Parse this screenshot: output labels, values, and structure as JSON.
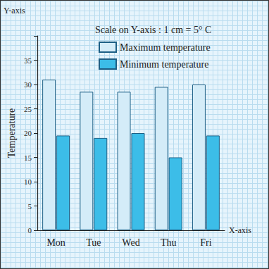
{
  "chart_data": {
    "type": "bar",
    "categories": [
      "Mon",
      "Tue",
      "Wed",
      "Thu",
      "Fri"
    ],
    "series": [
      {
        "name": "Maximum temperature",
        "color": "#d4ecf8",
        "values": [
          31,
          28.5,
          28.5,
          29.5,
          30
        ]
      },
      {
        "name": "Minimum temperature",
        "color": "#3cbde8",
        "values": [
          19.5,
          19,
          20,
          15,
          19.5
        ]
      }
    ],
    "xlabel": "X-axis",
    "ylabel": "Temperature",
    "annotations": [
      "Y-axis",
      "Scale on Y-axis : 1 cm = 5° C"
    ],
    "ylim": [
      0,
      40
    ],
    "yticks": [
      0,
      5,
      10,
      15,
      20,
      25,
      30,
      35
    ],
    "grid": true,
    "legend": "top"
  }
}
